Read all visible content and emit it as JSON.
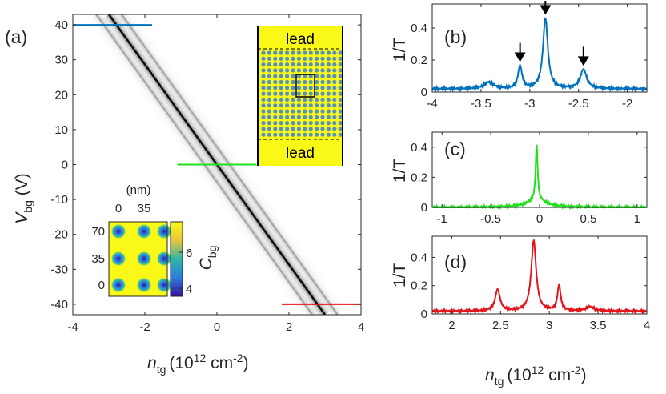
{
  "panel_labels": {
    "a": "(a)",
    "b": "(b)",
    "c": "(c)",
    "d": "(d)"
  },
  "colors": {
    "blue": "#0072BD",
    "green": "#22E01E",
    "red": "#E4141B",
    "yellow": "#F9F816",
    "dot": "#3A7DE0",
    "axis": "#262626"
  },
  "main": {
    "xlabel_main": "n",
    "xlabel_sub": "tg",
    "xlabel_units": "(10",
    "xlabel_sup1": "12",
    "xlabel_cm": " cm",
    "xlabel_sup2": "-2",
    "xlabel_close": ")",
    "ylabel_main": "V",
    "ylabel_sub": "bg",
    "ylabel_units": " (V)",
    "xticks": [
      "-4",
      "-2",
      "0",
      "2",
      "4"
    ],
    "yticks": [
      "40",
      "30",
      "20",
      "10",
      "0",
      "-10",
      "-20",
      "-30",
      "-40"
    ],
    "colorbar_label_main": "C",
    "colorbar_label_sub": "bg",
    "colorbar_ticks": [
      "6",
      "4"
    ],
    "inset_unit": "(nm)",
    "inset_xticks": [
      "0",
      "35"
    ],
    "inset_yticks": [
      "70",
      "35",
      "0"
    ],
    "lead_top": "lead",
    "lead_bottom": "lead"
  },
  "chart_data": [
    {
      "type": "heatmap",
      "panel": "a",
      "x_range": [
        -4,
        4
      ],
      "y_range": [
        -43,
        43
      ],
      "xlabel": "n_tg (10^12 cm^-2)",
      "ylabel": "V_bg (V)",
      "ridges": [
        {
          "from": [
            -3.0,
            43
          ],
          "to": [
            3.0,
            -43
          ],
          "strength": 1.0
        },
        {
          "from": [
            -3.35,
            43
          ],
          "to": [
            2.65,
            -43
          ],
          "strength": 0.28
        },
        {
          "from": [
            -2.65,
            43
          ],
          "to": [
            3.35,
            -43
          ],
          "strength": 0.28
        }
      ],
      "cut_lines": [
        {
          "V_bg": 40,
          "x": [
            -4,
            -1.8
          ],
          "color": "blue"
        },
        {
          "V_bg": 0,
          "x": [
            -1.1,
            1.1
          ],
          "color": "green"
        },
        {
          "V_bg": -40,
          "x": [
            1.8,
            4
          ],
          "color": "red"
        }
      ]
    },
    {
      "type": "line",
      "panel": "b",
      "ylabel": "1/T",
      "xlim": [
        -4,
        -1.8
      ],
      "ylim": [
        0,
        0.55
      ],
      "xticks": [
        "-4",
        "-3.5",
        "-3",
        "-2.5",
        "-2"
      ],
      "yticks": [
        "0",
        "0.2",
        "0.4"
      ],
      "baseline": 0.02,
      "peaks": [
        {
          "x": -3.42,
          "h": 0.04,
          "w": 0.06
        },
        {
          "x": -3.1,
          "h": 0.14,
          "w": 0.025
        },
        {
          "x": -2.84,
          "h": 0.44,
          "w": 0.03
        },
        {
          "x": -2.45,
          "h": 0.12,
          "w": 0.04
        }
      ],
      "arrows_at": [
        -3.1,
        -2.84,
        -2.45
      ]
    },
    {
      "type": "line",
      "panel": "c",
      "ylabel": "1/T",
      "xlim": [
        -1.1,
        1.1
      ],
      "ylim": [
        0,
        0.5
      ],
      "xticks": [
        "-1",
        "-0.5",
        "0",
        "0.5",
        "1"
      ],
      "yticks": [
        "0",
        "0.2",
        "0.4"
      ],
      "baseline": 0.0,
      "peaks": [
        {
          "x": -0.03,
          "h": 0.37,
          "w": 0.012
        },
        {
          "x": -0.03,
          "h": 0.05,
          "w": 0.12
        }
      ]
    },
    {
      "type": "line",
      "panel": "d",
      "ylabel": "1/T",
      "xlim": [
        1.8,
        4
      ],
      "ylim": [
        0,
        0.55
      ],
      "xticks": [
        "2",
        "2.5",
        "3",
        "3.5",
        "4"
      ],
      "yticks": [
        "0",
        "0.2",
        "0.4"
      ],
      "xlabel": "n_tg (10^12 cm^-2)",
      "baseline": 0.02,
      "peaks": [
        {
          "x": 2.47,
          "h": 0.15,
          "w": 0.03
        },
        {
          "x": 2.84,
          "h": 0.5,
          "w": 0.03
        },
        {
          "x": 3.1,
          "h": 0.18,
          "w": 0.02
        },
        {
          "x": 3.42,
          "h": 0.03,
          "w": 0.05
        }
      ]
    }
  ]
}
